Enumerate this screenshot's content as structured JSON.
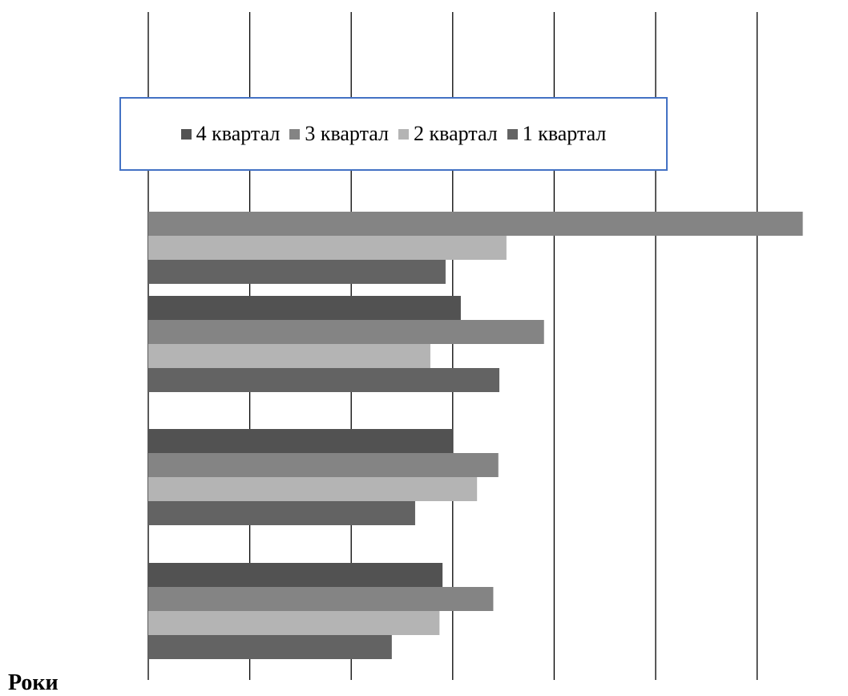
{
  "chart_data": {
    "type": "bar",
    "orientation": "horizontal",
    "categories": [
      "",
      "",
      "",
      ""
    ],
    "ylabel": "Роки",
    "xlim": [
      0,
      6.5
    ],
    "grid": true,
    "legend_position": "top",
    "series": [
      {
        "name": "4 квартал",
        "color": "#525252",
        "values": [
          0,
          3.08,
          3.0,
          2.9
        ]
      },
      {
        "name": "3 квартал",
        "color": "#848484",
        "values": [
          6.45,
          3.9,
          3.45,
          3.4
        ]
      },
      {
        "name": "2 квартал",
        "color": "#b4b4b4",
        "values": [
          3.53,
          2.78,
          3.24,
          2.87
        ]
      },
      {
        "name": "1 квартал",
        "color": "#636363",
        "values": [
          2.93,
          3.46,
          2.63,
          2.4
        ]
      }
    ]
  }
}
